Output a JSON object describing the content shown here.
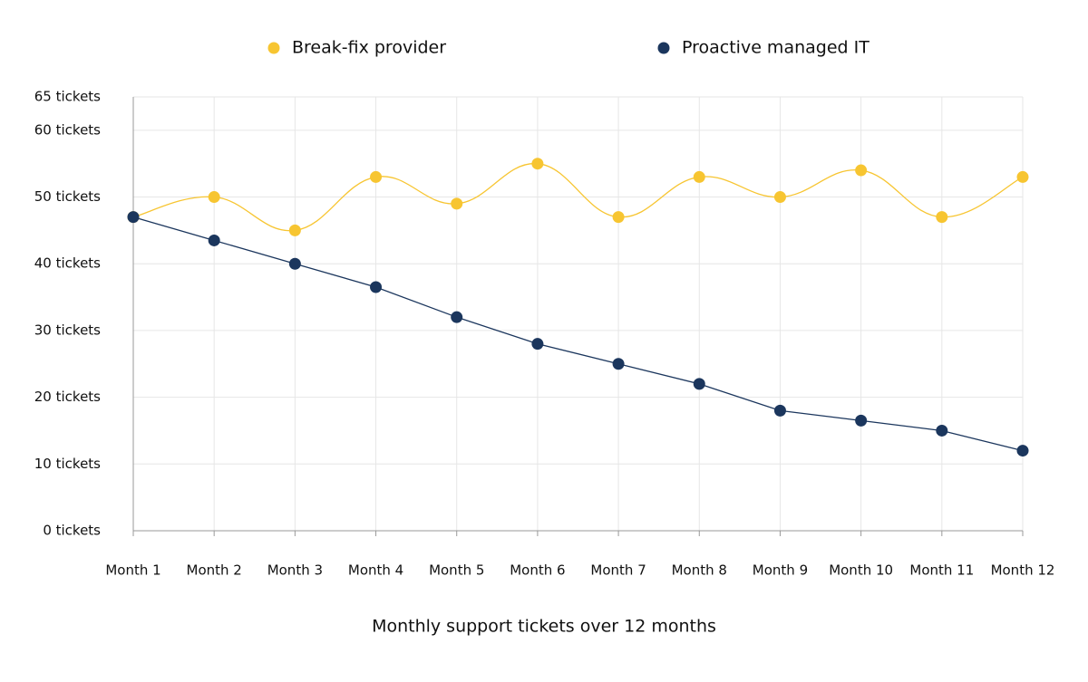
{
  "chart_data": {
    "type": "line",
    "title": "Monthly support tickets over 12 months",
    "categories": [
      "Month 1",
      "Month 2",
      "Month 3",
      "Month 4",
      "Month 5",
      "Month 6",
      "Month 7",
      "Month 8",
      "Month 9",
      "Month 10",
      "Month 11",
      "Month 12"
    ],
    "series": [
      {
        "name": "Break-fix provider",
        "color": "#f7c531",
        "smooth": true,
        "values": [
          47,
          50,
          45,
          53,
          49,
          55,
          47,
          53,
          50,
          54,
          47,
          53
        ]
      },
      {
        "name": "Proactive managed IT",
        "color": "#1b365d",
        "smooth": false,
        "values": [
          47,
          43.5,
          40,
          36.5,
          32,
          28,
          25,
          22,
          18,
          16.5,
          15,
          12
        ]
      }
    ],
    "ylim": [
      0,
      65
    ],
    "yticks": [
      {
        "value": 0,
        "label": "0 tickets"
      },
      {
        "value": 10,
        "label": "10 tickets"
      },
      {
        "value": 20,
        "label": "20 tickets"
      },
      {
        "value": 30,
        "label": "30 tickets"
      },
      {
        "value": 40,
        "label": "40 tickets"
      },
      {
        "value": 50,
        "label": "50 tickets"
      },
      {
        "value": 60,
        "label": "60 tickets"
      },
      {
        "value": 65,
        "label": "65 tickets"
      }
    ],
    "grid": true,
    "legend": "top"
  }
}
